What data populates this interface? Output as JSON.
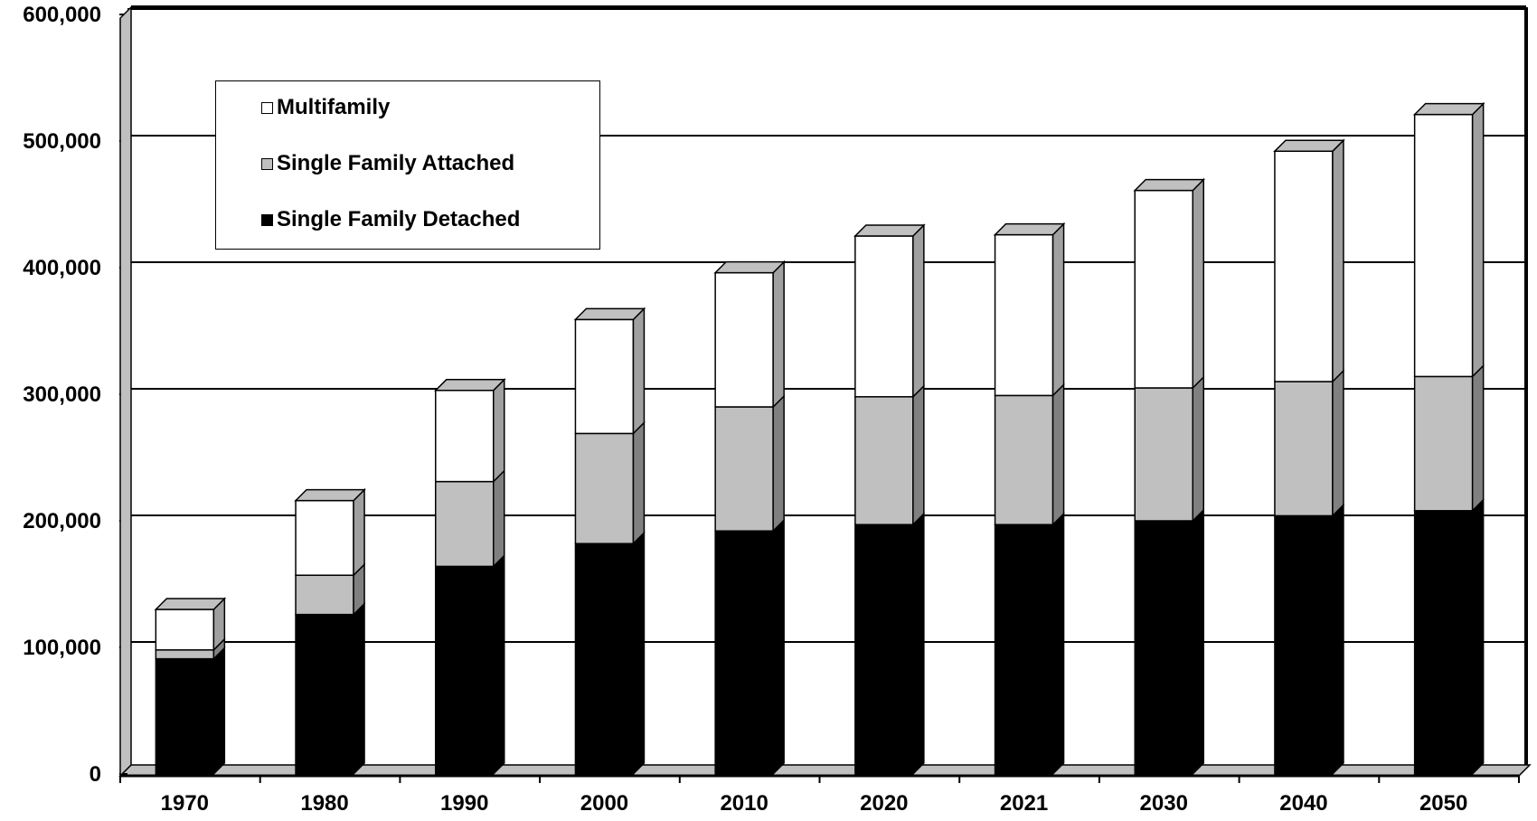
{
  "chart_data": {
    "type": "bar",
    "stacked": true,
    "categories": [
      "1970",
      "1980",
      "1990",
      "2000",
      "2010",
      "2020",
      "2021",
      "2030",
      "2040",
      "2050"
    ],
    "series": [
      {
        "name": "Single Family Detached",
        "color": "#000000",
        "values": [
          91000,
          126000,
          164000,
          182000,
          192000,
          197000,
          197000,
          200000,
          204000,
          208000
        ]
      },
      {
        "name": "Single Family Attached",
        "color": "#c0c0c0",
        "values": [
          7000,
          31000,
          67000,
          87000,
          98000,
          101000,
          102000,
          105000,
          106000,
          106000
        ]
      },
      {
        "name": "Multifamily",
        "color": "#ffffff",
        "values": [
          32000,
          59000,
          72000,
          90000,
          106000,
          127000,
          127000,
          156000,
          182000,
          207000
        ]
      }
    ],
    "ylim": [
      0,
      600000
    ],
    "yticks": [
      "0",
      "100,000",
      "200,000",
      "300,000",
      "400,000",
      "500,000",
      "600,000"
    ],
    "grid": true,
    "legend_position": "top-left",
    "title": "",
    "xlabel": "",
    "ylabel": ""
  }
}
